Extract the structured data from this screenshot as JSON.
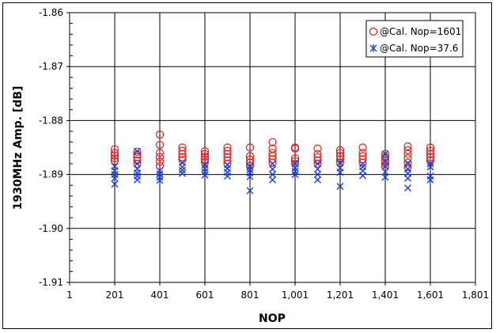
{
  "chart_data": {
    "type": "scatter",
    "title": "",
    "xlabel": "NOP",
    "ylabel": "1930MHz Amp. [dB]",
    "xlim": [
      1,
      1801
    ],
    "ylim": [
      -1.91,
      -1.86
    ],
    "x_ticks": [
      1,
      201,
      401,
      601,
      801,
      1001,
      1201,
      1401,
      1601,
      1801
    ],
    "x_tick_labels": [
      "1",
      "201",
      "401",
      "601",
      "801",
      "1,001",
      "1,201",
      "1,401",
      "1,601",
      "1,801"
    ],
    "y_ticks": [
      -1.86,
      -1.87,
      -1.88,
      -1.89,
      -1.9,
      -1.91
    ],
    "y_tick_labels": [
      "-1.86",
      "-1.87",
      "-1.88",
      "-1.89",
      "-1.90",
      "-1.91"
    ],
    "grid": true,
    "legend_position": "top-right",
    "series": [
      {
        "name": "@Cal. Nop=1601",
        "marker": "circle",
        "color": "#e02020",
        "x": [
          201,
          201,
          201,
          201,
          201,
          301,
          301,
          301,
          301,
          301,
          401,
          401,
          401,
          401,
          401,
          401,
          501,
          501,
          501,
          501,
          501,
          601,
          601,
          601,
          601,
          601,
          701,
          701,
          701,
          701,
          701,
          701,
          801,
          801,
          801,
          801,
          801,
          901,
          901,
          901,
          901,
          901,
          901,
          1001,
          1001,
          1001,
          1001,
          1001,
          1101,
          1101,
          1101,
          1101,
          1101,
          1201,
          1201,
          1201,
          1201,
          1201,
          1301,
          1301,
          1301,
          1301,
          1301,
          1401,
          1401,
          1401,
          1401,
          1401,
          1501,
          1501,
          1501,
          1501,
          1501,
          1501,
          1601,
          1601,
          1601,
          1601,
          1601
        ],
        "y": [
          -1.8853,
          -1.886,
          -1.8865,
          -1.887,
          -1.8875,
          -1.8858,
          -1.8863,
          -1.8868,
          -1.8874,
          -1.888,
          -1.8826,
          -1.8845,
          -1.886,
          -1.8868,
          -1.8876,
          -1.8884,
          -1.885,
          -1.8856,
          -1.8862,
          -1.8868,
          -1.8873,
          -1.8857,
          -1.8862,
          -1.8867,
          -1.8872,
          -1.8877,
          -1.885,
          -1.8856,
          -1.8862,
          -1.8868,
          -1.8874,
          -1.888,
          -1.885,
          -1.8866,
          -1.8872,
          -1.8878,
          -1.8884,
          -1.884,
          -1.8852,
          -1.886,
          -1.8866,
          -1.8872,
          -1.8878,
          -1.885,
          -1.8852,
          -1.887,
          -1.8875,
          -1.888,
          -1.8852,
          -1.8862,
          -1.8868,
          -1.8874,
          -1.888,
          -1.8855,
          -1.886,
          -1.8866,
          -1.8872,
          -1.8878,
          -1.885,
          -1.886,
          -1.8866,
          -1.8872,
          -1.8878,
          -1.8862,
          -1.8868,
          -1.8874,
          -1.888,
          -1.8886,
          -1.8848,
          -1.8855,
          -1.8862,
          -1.887,
          -1.8878,
          -1.8886,
          -1.885,
          -1.8856,
          -1.8862,
          -1.8868,
          -1.8874
        ]
      },
      {
        "name": "@Cal. Nop=37.6",
        "marker": "x",
        "color": "#1a3fe0",
        "x": [
          201,
          201,
          201,
          201,
          201,
          301,
          301,
          301,
          301,
          301,
          301,
          401,
          401,
          401,
          401,
          501,
          501,
          501,
          501,
          601,
          601,
          601,
          601,
          701,
          701,
          701,
          701,
          801,
          801,
          801,
          801,
          801,
          901,
          901,
          901,
          901,
          1001,
          1001,
          1001,
          1001,
          1101,
          1101,
          1101,
          1101,
          1201,
          1201,
          1201,
          1201,
          1301,
          1301,
          1301,
          1301,
          1401,
          1401,
          1401,
          1401,
          1401,
          1501,
          1501,
          1501,
          1501,
          1501,
          1601,
          1601,
          1601,
          1601
        ],
        "y": [
          -1.8885,
          -1.8893,
          -1.89,
          -1.8907,
          -1.8918,
          -1.8857,
          -1.888,
          -1.889,
          -1.8897,
          -1.8903,
          -1.891,
          -1.8893,
          -1.8899,
          -1.8905,
          -1.8911,
          -1.8878,
          -1.8886,
          -1.8892,
          -1.8898,
          -1.8882,
          -1.8889,
          -1.8895,
          -1.8901,
          -1.8882,
          -1.8889,
          -1.8896,
          -1.8903,
          -1.8885,
          -1.8891,
          -1.8897,
          -1.8904,
          -1.893,
          -1.888,
          -1.889,
          -1.89,
          -1.891,
          -1.888,
          -1.8888,
          -1.8894,
          -1.89,
          -1.888,
          -1.889,
          -1.89,
          -1.891,
          -1.8878,
          -1.8888,
          -1.8896,
          -1.8922,
          -1.888,
          -1.8886,
          -1.8893,
          -1.8902,
          -1.8862,
          -1.8875,
          -1.8885,
          -1.8895,
          -1.8905,
          -1.888,
          -1.889,
          -1.8898,
          -1.8907,
          -1.8925,
          -1.888,
          -1.8886,
          -1.8903,
          -1.891
        ]
      }
    ]
  }
}
